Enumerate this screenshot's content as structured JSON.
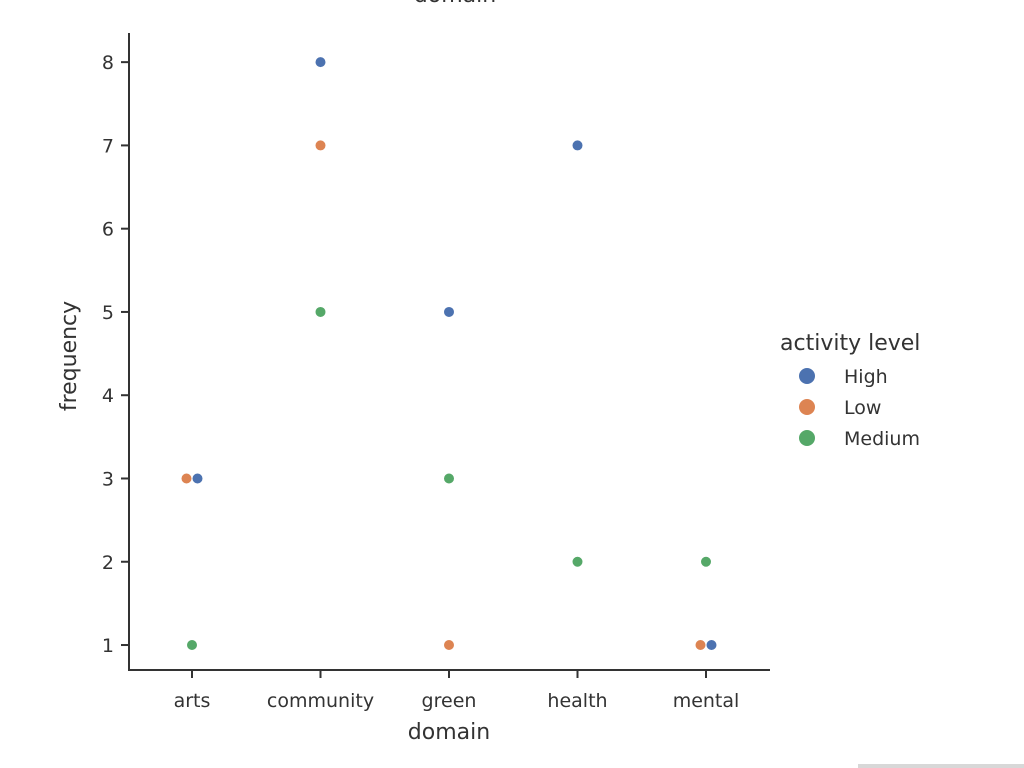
{
  "chart_data": {
    "type": "scatter",
    "title": "domain",
    "xlabel": "domain",
    "ylabel": "frequency",
    "categories": [
      "arts",
      "community",
      "green",
      "health",
      "mental"
    ],
    "ylim": [
      0.7,
      8.35
    ],
    "yticks": [
      1,
      2,
      3,
      4,
      5,
      6,
      7,
      8
    ],
    "grid": false,
    "legend": {
      "title": "activity level",
      "placement": "right"
    },
    "series": [
      {
        "name": "High",
        "color": "#4c72b0",
        "points": [
          {
            "category": "arts",
            "value": 3
          },
          {
            "category": "community",
            "value": 8
          },
          {
            "category": "green",
            "value": 5
          },
          {
            "category": "health",
            "value": 7
          },
          {
            "category": "mental",
            "value": 1
          }
        ]
      },
      {
        "name": "Low",
        "color": "#dd8452",
        "points": [
          {
            "category": "arts",
            "value": 3
          },
          {
            "category": "community",
            "value": 7
          },
          {
            "category": "green",
            "value": 1
          },
          {
            "category": "mental",
            "value": 1
          }
        ]
      },
      {
        "name": "Medium",
        "color": "#55a868",
        "points": [
          {
            "category": "arts",
            "value": 1
          },
          {
            "category": "community",
            "value": 5
          },
          {
            "category": "green",
            "value": 3
          },
          {
            "category": "health",
            "value": 2
          },
          {
            "category": "mental",
            "value": 2
          }
        ]
      }
    ]
  }
}
